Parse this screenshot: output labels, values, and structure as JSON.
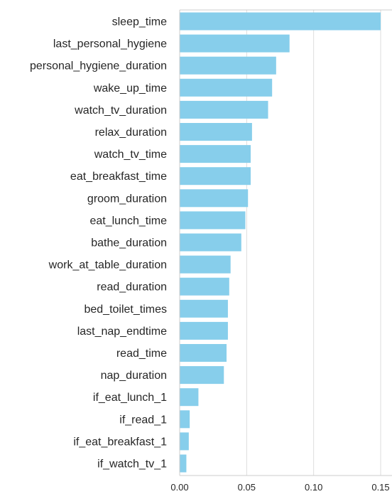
{
  "chart_data": {
    "type": "bar",
    "orientation": "horizontal",
    "bar_color": "#87CEEB",
    "grid": true,
    "xlim": [
      0,
      0.155
    ],
    "xticks": [
      {
        "value": 0.0,
        "label": "0.00"
      },
      {
        "value": 0.05,
        "label": "0.05"
      },
      {
        "value": 0.1,
        "label": "0.10"
      },
      {
        "value": 0.15,
        "label": "0.15"
      }
    ],
    "categories": [
      "sleep_time",
      "last_personal_hygiene",
      "personal_hygiene_duration",
      "wake_up_time",
      "watch_tv_duration",
      "relax_duration",
      "watch_tv_time",
      "eat_breakfast_time",
      "groom_duration",
      "eat_lunch_time",
      "bathe_duration",
      "work_at_table_duration",
      "read_duration",
      "bed_toilet_times",
      "last_nap_endtime",
      "read_time",
      "nap_duration",
      "if_eat_lunch_1",
      "if_read_1",
      "if_eat_breakfast_1",
      "if_watch_tv_1"
    ],
    "values": [
      0.15,
      0.082,
      0.072,
      0.069,
      0.066,
      0.054,
      0.053,
      0.053,
      0.051,
      0.049,
      0.046,
      0.038,
      0.037,
      0.036,
      0.036,
      0.035,
      0.033,
      0.014,
      0.0075,
      0.0068,
      0.005
    ],
    "title": "",
    "xlabel": "",
    "ylabel": ""
  }
}
